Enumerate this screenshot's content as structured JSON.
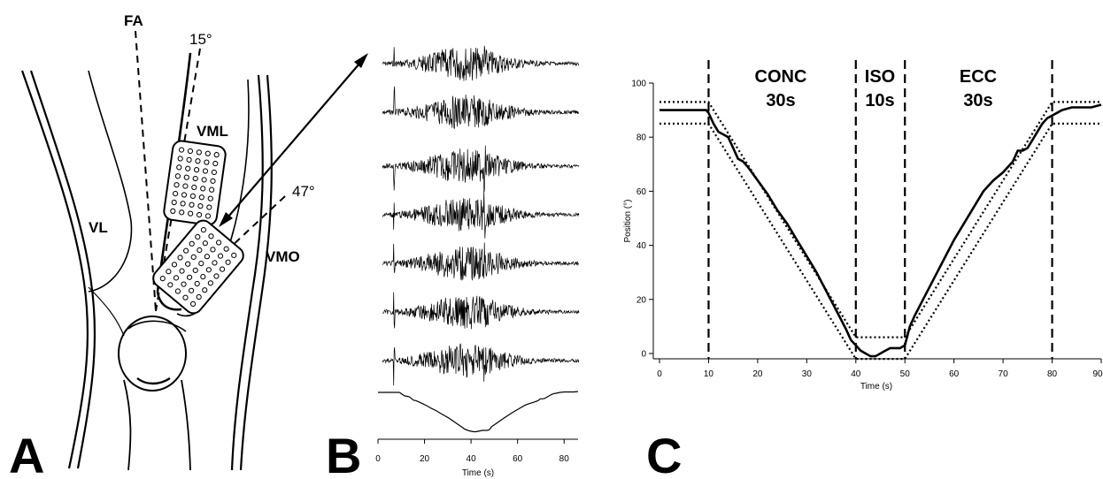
{
  "panel_a": {
    "letter": "A",
    "labels": {
      "fa": "FA",
      "angle_15": "15°",
      "angle_47": "47°",
      "vml": "VML",
      "vmo": "VMO",
      "vl": "VL"
    }
  },
  "panel_b": {
    "letter": "B",
    "emg_channel_count": 7,
    "x_ticks": [
      "0",
      "20",
      "40",
      "60",
      "80"
    ],
    "xlabel": "Time (s)",
    "xlim": [
      0,
      86
    ]
  },
  "panel_c": {
    "letter": "C",
    "phases": [
      {
        "name": "CONC",
        "duration": "30s"
      },
      {
        "name": "ISO",
        "duration": "10s"
      },
      {
        "name": "ECC",
        "duration": "30s"
      }
    ]
  },
  "chart_data": {
    "type": "line",
    "title": "",
    "xlabel": "Time (s)",
    "ylabel": "Position (°)",
    "xlim": [
      0,
      90
    ],
    "ylim": [
      0,
      100
    ],
    "x_ticks": [
      0,
      10,
      20,
      30,
      40,
      50,
      60,
      70,
      80,
      90
    ],
    "y_ticks": [
      0,
      20,
      40,
      60,
      80,
      100
    ],
    "phase_boundaries": [
      10,
      40,
      50,
      80
    ],
    "grid": false,
    "series": [
      {
        "style": "solid",
        "x": [
          0,
          9.5,
          10,
          11,
          12,
          13,
          14,
          15,
          16,
          17,
          18,
          20,
          22,
          24,
          26,
          28,
          30,
          32,
          34,
          36,
          38,
          39,
          40,
          41,
          42,
          43,
          44,
          45,
          46,
          47,
          48,
          49,
          50,
          51,
          52,
          54,
          56,
          58,
          60,
          62,
          64,
          66,
          68,
          70,
          72,
          73,
          74,
          75,
          76,
          77,
          78,
          79,
          80,
          81,
          82,
          84,
          86,
          88,
          90
        ],
        "y": [
          90,
          90,
          89,
          85,
          82,
          81,
          80,
          76,
          72,
          71,
          69,
          64,
          59,
          53,
          48,
          42,
          36,
          30,
          23,
          16,
          9,
          5,
          3,
          1,
          0,
          -1,
          -1,
          0,
          1,
          2,
          2,
          2,
          3,
          10,
          14,
          21,
          28,
          35,
          42,
          48,
          54,
          60,
          64,
          67,
          71,
          75,
          75,
          76,
          79,
          82,
          85,
          87,
          88,
          89,
          90,
          91,
          91,
          91,
          92
        ]
      },
      {
        "style": "dotted",
        "x": [
          0,
          10,
          40,
          50,
          80,
          90
        ],
        "y": [
          93,
          93,
          6,
          6,
          93,
          93
        ]
      },
      {
        "style": "dotted",
        "x": [
          0,
          10,
          40,
          50,
          80,
          90
        ],
        "y": [
          85,
          85,
          -2,
          -2,
          85,
          85
        ]
      }
    ]
  }
}
